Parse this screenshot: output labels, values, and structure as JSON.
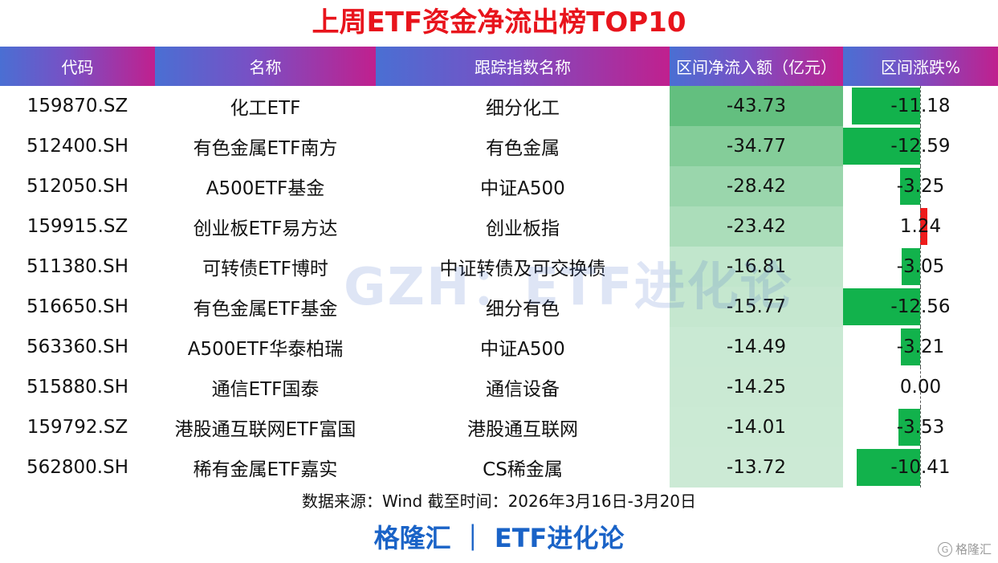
{
  "title": "上周ETF资金净流出榜TOP10",
  "headers": {
    "code": "代码",
    "name": "名称",
    "index": "跟踪指数名称",
    "flow": "区间净流入额（亿元）",
    "change": "区间涨跌%"
  },
  "rows": [
    {
      "code": "159870.SZ",
      "name": "化工ETF",
      "index": "细分化工",
      "flow": "-43.73",
      "change": "-11.18"
    },
    {
      "code": "512400.SH",
      "name": "有色金属ETF南方",
      "index": "有色金属",
      "flow": "-34.77",
      "change": "-12.59"
    },
    {
      "code": "512050.SH",
      "name": "A500ETF基金",
      "index": "中证A500",
      "flow": "-28.42",
      "change": "-3.25"
    },
    {
      "code": "159915.SZ",
      "name": "创业板ETF易方达",
      "index": "创业板指",
      "flow": "-23.42",
      "change": "1.24"
    },
    {
      "code": "511380.SH",
      "name": "可转债ETF博时",
      "index": "中证转债及可交换债",
      "flow": "-16.81",
      "change": "-3.05"
    },
    {
      "code": "516650.SH",
      "name": "有色金属ETF基金",
      "index": "细分有色",
      "flow": "-15.77",
      "change": "-12.56"
    },
    {
      "code": "563360.SH",
      "name": "A500ETF华泰柏瑞",
      "index": "中证A500",
      "flow": "-14.49",
      "change": "-3.21"
    },
    {
      "code": "515880.SH",
      "name": "通信ETF国泰",
      "index": "通信设备",
      "flow": "-14.25",
      "change": "0.00"
    },
    {
      "code": "159792.SZ",
      "name": "港股通互联网ETF富国",
      "index": "港股通互联网",
      "flow": "-14.01",
      "change": "-3.53"
    },
    {
      "code": "562800.SH",
      "name": "稀有金属ETF嘉实",
      "index": "CS稀金属",
      "flow": "-13.72",
      "change": "-10.41"
    }
  ],
  "watermark": "GZH：ETF进化论",
  "source": "数据来源：Wind 截至时间：2026年3月16日-3月20日",
  "brand": "格隆汇 ｜ ETF进化论",
  "corner_logo": "格隆汇",
  "colors": {
    "title": "#e8141c",
    "negative_bar": "#12b24c",
    "positive_bar": "#ee1c1c",
    "flow_heat": "#6cc283",
    "brand": "#1a63c7"
  }
}
